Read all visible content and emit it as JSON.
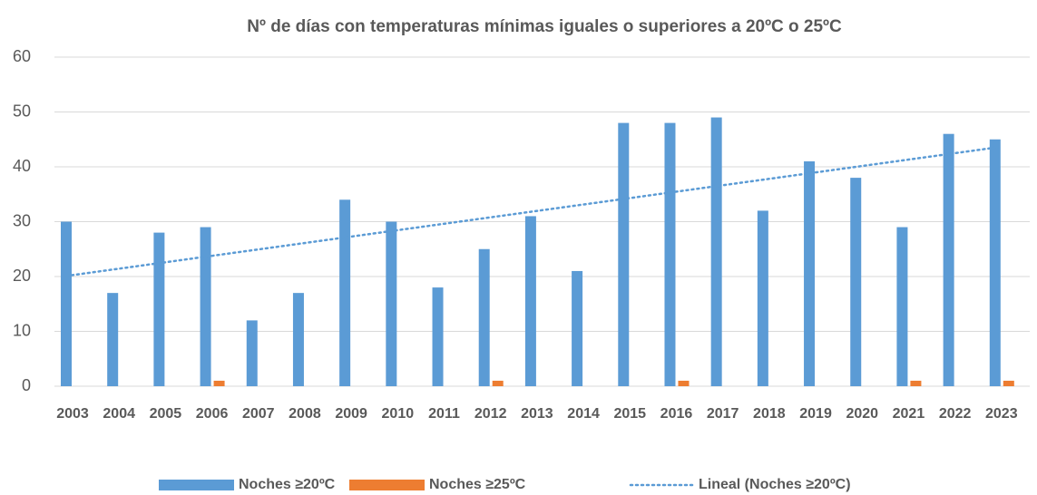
{
  "chart_data": {
    "type": "bar",
    "title": "Nº de días con temperaturas mínimas iguales o superiores a 20ºC o 25ºC",
    "categories": [
      "2003",
      "2004",
      "2005",
      "2006",
      "2007",
      "2008",
      "2009",
      "2010",
      "2011",
      "2012",
      "2013",
      "2014",
      "2015",
      "2016",
      "2017",
      "2018",
      "2019",
      "2020",
      "2021",
      "2022",
      "2023"
    ],
    "series": [
      {
        "name": "Noches ≥20ºC",
        "color": "#5b9bd5",
        "values": [
          30,
          17,
          28,
          29,
          12,
          17,
          34,
          30,
          18,
          25,
          31,
          21,
          48,
          48,
          49,
          32,
          41,
          38,
          29,
          46,
          45
        ]
      },
      {
        "name": "Noches ≥25ºC",
        "color": "#ed7d31",
        "values": [
          0,
          0,
          0,
          1,
          0,
          0,
          0,
          0,
          0,
          1,
          0,
          0,
          0,
          1,
          0,
          0,
          0,
          0,
          1,
          0,
          1
        ]
      }
    ],
    "trendline": {
      "name": "Lineal (Noches ≥20ºC)",
      "color": "#5b9bd5",
      "values": [
        20.1,
        43.5
      ]
    },
    "ylim": [
      0,
      60
    ],
    "yticks": [
      0,
      10,
      20,
      30,
      40,
      50,
      60
    ],
    "grid": true,
    "legend": "bottom"
  }
}
